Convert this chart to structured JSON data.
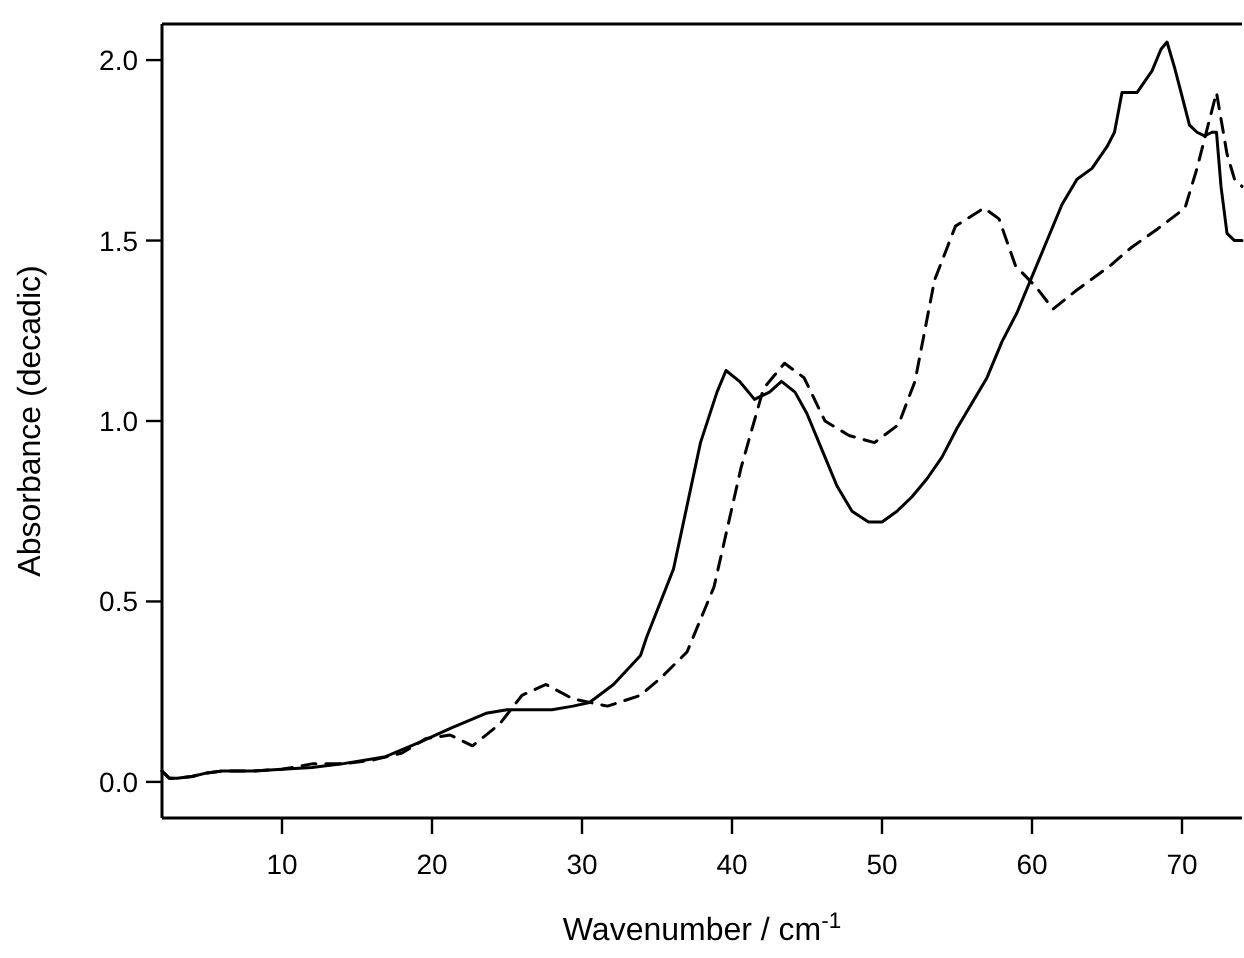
{
  "chart_data": {
    "type": "line",
    "xlabel": "Wavenumber / cm$^{-1}$",
    "ylabel": "Absorbance (decadic)",
    "xlim": [
      2,
      74
    ],
    "ylim": [
      -0.1,
      2.1
    ],
    "xticks": [
      10,
      20,
      30,
      40,
      50,
      60,
      70
    ],
    "yticks": [
      {
        "value": 0,
        "label": "0.0"
      },
      {
        "value": 0.5,
        "label": "0.5"
      },
      {
        "value": 1,
        "label": "1.0"
      },
      {
        "value": 1.5,
        "label": "1.5"
      },
      {
        "value": 2,
        "label": "2.0"
      }
    ],
    "grid": false,
    "series": [
      {
        "color": "#000000",
        "line_style": "solid",
        "x": [
          2,
          2.5,
          3,
          4,
          5,
          6,
          8,
          10,
          12,
          14,
          16.9,
          19.2,
          21.3,
          23.6,
          25,
          26.7,
          28,
          29.4,
          30.5,
          32.1,
          33.9,
          34.3,
          36.1,
          37.9,
          39,
          39.6,
          40.5,
          41.5,
          42.5,
          43.3,
          44.2,
          45,
          46,
          47,
          48,
          49.1,
          50,
          51,
          52,
          53,
          54,
          55,
          56,
          57,
          58,
          59,
          60,
          61,
          62,
          63,
          64,
          65,
          65.5,
          66,
          66.5,
          67,
          68,
          68.6,
          69,
          69.5,
          70,
          70.5,
          71,
          71.5,
          72,
          72.3,
          72.6,
          73,
          73.5,
          74
        ],
        "values": [
          0.03,
          0.01,
          0.01,
          0.015,
          0.025,
          0.03,
          0.03,
          0.035,
          0.04,
          0.05,
          0.07,
          0.11,
          0.15,
          0.19,
          0.2,
          0.2,
          0.2,
          0.21,
          0.22,
          0.27,
          0.35,
          0.4,
          0.59,
          0.94,
          1.08,
          1.14,
          1.11,
          1.06,
          1.08,
          1.11,
          1.08,
          1.02,
          0.92,
          0.82,
          0.75,
          0.72,
          0.72,
          0.75,
          0.79,
          0.84,
          0.9,
          0.98,
          1.05,
          1.12,
          1.22,
          1.3,
          1.4,
          1.5,
          1.6,
          1.67,
          1.7,
          1.76,
          1.8,
          1.91,
          1.91,
          1.91,
          1.97,
          2.03,
          2.05,
          1.98,
          1.9,
          1.82,
          1.8,
          1.79,
          1.8,
          1.8,
          1.65,
          1.52,
          1.5,
          1.5
        ]
      },
      {
        "color": "#000000",
        "line_style": "dashed",
        "x": [
          2,
          2.5,
          3,
          4,
          5,
          6,
          8,
          10,
          12,
          14,
          16,
          18,
          19.6,
          21.2,
          22.7,
          24.5,
          26,
          27.6,
          29.4,
          31.7,
          33.9,
          35.3,
          37,
          38.8,
          40.6,
          42.1,
          43.5,
          44.8,
          46.2,
          47.8,
          49.5,
          51.1,
          52.2,
          53.5,
          54.9,
          56.8,
          57.8,
          58.9,
          60.3,
          61.4,
          62.9,
          65.2,
          66.6,
          68.3,
          70.2,
          71,
          72.3,
          73,
          73.5,
          74
        ],
        "values": [
          0.03,
          0.01,
          0.01,
          0.015,
          0.025,
          0.03,
          0.03,
          0.035,
          0.05,
          0.05,
          0.06,
          0.08,
          0.12,
          0.13,
          0.1,
          0.16,
          0.24,
          0.27,
          0.23,
          0.21,
          0.24,
          0.29,
          0.36,
          0.54,
          0.87,
          1.09,
          1.16,
          1.12,
          1.0,
          0.96,
          0.94,
          0.99,
          1.11,
          1.39,
          1.54,
          1.59,
          1.56,
          1.43,
          1.37,
          1.31,
          1.36,
          1.43,
          1.48,
          1.53,
          1.59,
          1.7,
          1.91,
          1.74,
          1.67,
          1.65
        ]
      }
    ]
  }
}
